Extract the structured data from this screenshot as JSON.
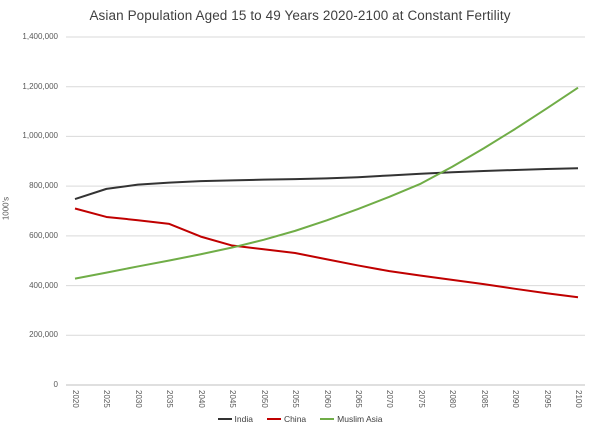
{
  "chart_data": {
    "type": "line",
    "title": "Asian Population Aged 15 to 49 Years 2020-2100 at Constant Fertility",
    "xlabel": "",
    "ylabel": "1000's",
    "x": [
      "2020",
      "2025",
      "2030",
      "2035",
      "2040",
      "2045",
      "2050",
      "2055",
      "2060",
      "2065",
      "2070",
      "2075",
      "2080",
      "2085",
      "2090",
      "2095",
      "2100"
    ],
    "series": [
      {
        "name": "India",
        "color": "#333333",
        "values": [
          748000,
          789000,
          806000,
          814000,
          820000,
          823000,
          826000,
          828000,
          831000,
          836000,
          843000,
          850000,
          856000,
          861000,
          865000,
          869000,
          872000
        ]
      },
      {
        "name": "China",
        "color": "#c00000",
        "values": [
          710000,
          676000,
          663000,
          648000,
          597000,
          561000,
          546000,
          531000,
          506000,
          481000,
          458000,
          440000,
          423000,
          406000,
          387000,
          369000,
          353000
        ]
      },
      {
        "name": "Muslim Asia",
        "color": "#70ad47",
        "values": [
          428000,
          452000,
          477000,
          501000,
          526000,
          553000,
          584000,
          620000,
          662000,
          708000,
          757000,
          810000,
          878000,
          952000,
          1030000,
          1112000,
          1196000
        ]
      }
    ],
    "ylim": [
      0,
      1400000
    ],
    "y_tick_step": 200000,
    "y_tick_labels": [
      "0",
      "200,000",
      "400,000",
      "600,000",
      "800,000",
      "1,000,000",
      "1,200,000",
      "1,400,000"
    ],
    "grid": "horizontal",
    "legend_position": "bottom",
    "gridline_color": "#d9d9d9",
    "axis_line_color": "#bfbfbf",
    "tick_label_color": "#595959"
  }
}
